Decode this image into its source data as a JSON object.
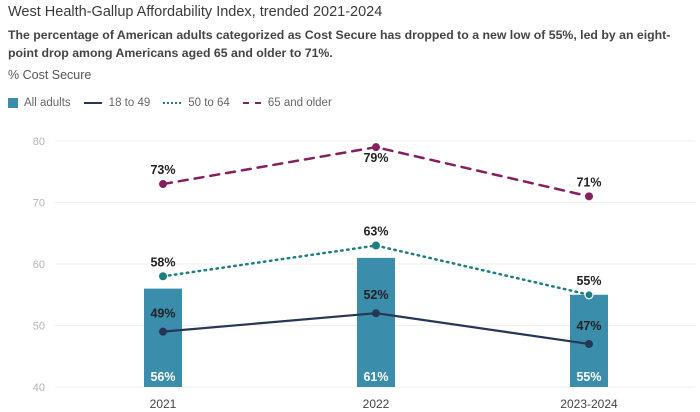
{
  "header": {
    "title": "West Health-Gallup Affordability Index, trended 2021-2024",
    "subtitle": "The percentage of American adults categorized as Cost Secure has dropped to a new low of 55%, led by an eight-point drop among Americans aged 65 and older to 71%.",
    "measure_label": "% Cost Secure"
  },
  "legend": [
    {
      "name": "All adults",
      "style": "bar",
      "color": "#3b8dac"
    },
    {
      "name": "18 to 49",
      "style": "solid",
      "color": "#253656"
    },
    {
      "name": "50 to 64",
      "style": "dotted",
      "color": "#1e7f80"
    },
    {
      "name": "65 and older",
      "style": "dashed",
      "color": "#84205f"
    }
  ],
  "chart_data": {
    "type": "bar",
    "title": "West Health-Gallup Affordability Index, trended 2021-2024",
    "ylabel": "% Cost Secure",
    "xlabel": "",
    "categories": [
      "2021",
      "2022",
      "2023-2024"
    ],
    "ylim": [
      40,
      80
    ],
    "yticks": [
      40,
      50,
      60,
      70,
      80
    ],
    "grid": true,
    "legend_position": "top-left",
    "bar_series": {
      "name": "All adults",
      "values": [
        56,
        61,
        55
      ],
      "labels": [
        "56%",
        "61%",
        "55%"
      ],
      "color": "#3b8dac"
    },
    "line_series": [
      {
        "name": "18 to 49",
        "values": [
          49,
          52,
          47
        ],
        "labels": [
          "49%",
          "52%",
          "47%"
        ],
        "style": "solid",
        "color": "#253656"
      },
      {
        "name": "50 to 64",
        "values": [
          58,
          63,
          55
        ],
        "labels": [
          "58%",
          "63%",
          "55%"
        ],
        "style": "dotted",
        "color": "#1e7f80"
      },
      {
        "name": "65 and older",
        "values": [
          73,
          79,
          71
        ],
        "labels": [
          "73%",
          "79%",
          "71%"
        ],
        "style": "dashed",
        "color": "#84205f"
      }
    ]
  }
}
